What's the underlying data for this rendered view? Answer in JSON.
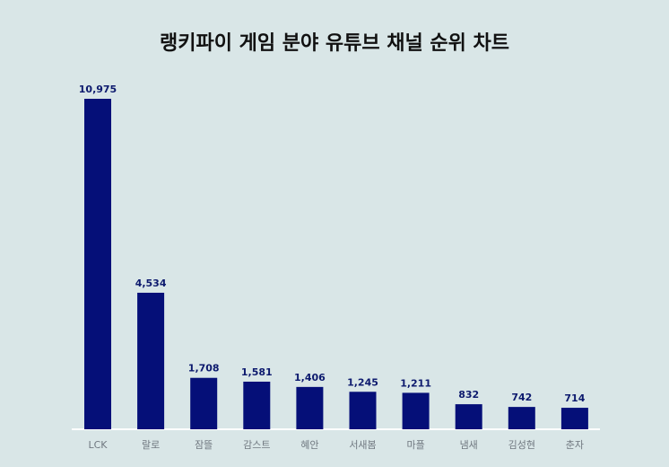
{
  "chart_data": {
    "type": "bar",
    "title": "랭키파이 게임 분야 유튜브 채널 순위 차트",
    "categories": [
      "LCK",
      "랄로",
      "잠뜰",
      "감스트",
      "혜안",
      "서새봄",
      "마플",
      "냄새",
      "김성현",
      "춘자"
    ],
    "values": [
      10975,
      4534,
      1708,
      1581,
      1406,
      1245,
      1211,
      832,
      742,
      714
    ],
    "value_labels": [
      "10,975",
      "4,534",
      "1,708",
      "1,581",
      "1,406",
      "1,245",
      "1,211",
      "832",
      "742",
      "714"
    ],
    "xlabel": "",
    "ylabel": "",
    "ylim": [
      0,
      11000
    ],
    "grid": false,
    "bar_color": "#050f78",
    "background_color": "#d9e6e7",
    "baseline_color": "#ffffff"
  }
}
